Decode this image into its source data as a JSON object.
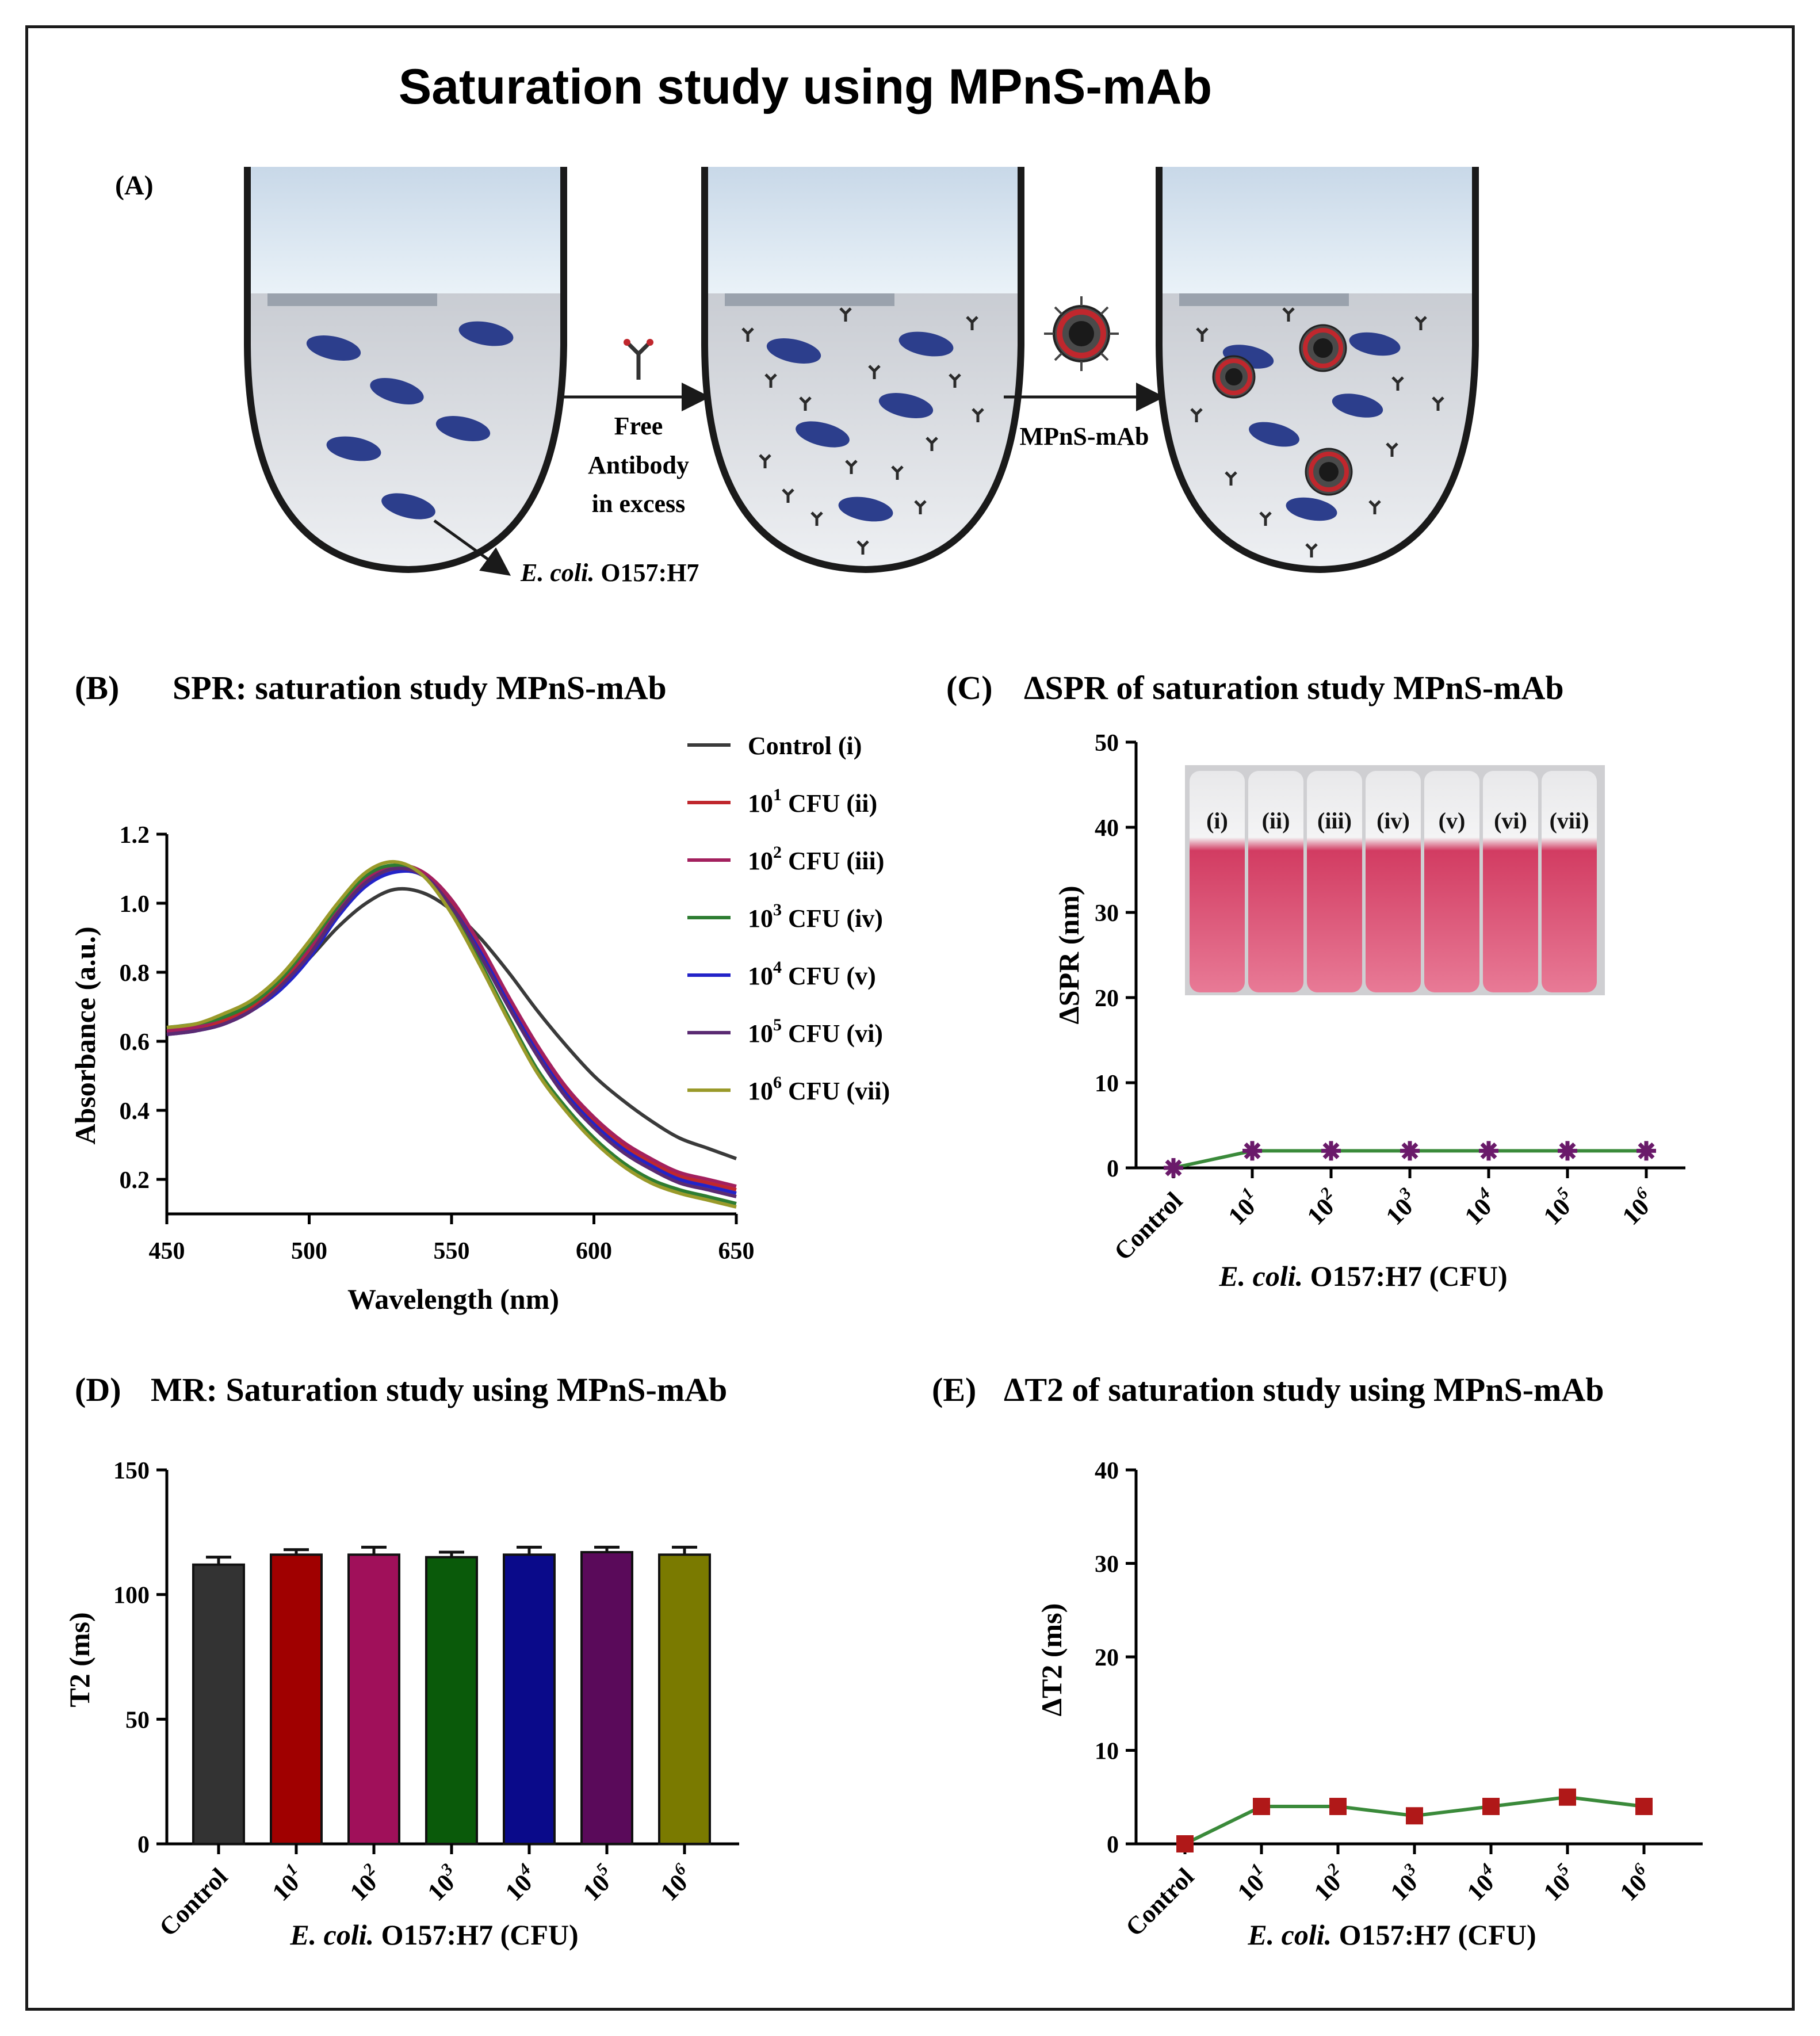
{
  "figure": {
    "title": "Saturation study using MPnS-mAb",
    "panel_a": {
      "label": "(A)",
      "step1_text": [
        "Free",
        "Antibody",
        "in excess"
      ],
      "step2_text": "MPnS-mAb",
      "pointer_label_italic": "E. coli.",
      "pointer_label_rest": " O157:H7"
    }
  },
  "chart_data": [
    {
      "id": "B",
      "panel_label": "(B)",
      "type": "line",
      "title": "SPR: saturation study MPnS-mAb",
      "xlabel": "Wavelength (nm)",
      "ylabel": "Absorbance (a.u.)",
      "xlim": [
        450,
        650
      ],
      "ylim": [
        0.1,
        1.2
      ],
      "xticks": [
        450,
        500,
        550,
        600,
        650
      ],
      "yticks": [
        0.2,
        0.4,
        0.6,
        0.8,
        1.0,
        1.2
      ],
      "ytick_labels": [
        "0.2",
        "0.4",
        "0.6",
        "0.8",
        "1.0",
        "1.2"
      ],
      "x": [
        450,
        460,
        470,
        480,
        490,
        500,
        510,
        520,
        530,
        540,
        550,
        560,
        570,
        580,
        590,
        600,
        610,
        620,
        630,
        640,
        650
      ],
      "series": [
        {
          "name": "Control (i)",
          "base": "Control",
          "sup": "",
          "suffix": " (i)",
          "color": "#3a3a3a",
          "values": [
            0.63,
            0.64,
            0.66,
            0.7,
            0.76,
            0.84,
            0.93,
            1.0,
            1.04,
            1.03,
            0.98,
            0.9,
            0.8,
            0.69,
            0.59,
            0.5,
            0.43,
            0.37,
            0.32,
            0.29,
            0.26
          ]
        },
        {
          "name": "10^1 CFU (ii)",
          "base": "10",
          "sup": "1",
          "suffix": " CFU (ii)",
          "color": "#c0272d",
          "values": [
            0.63,
            0.64,
            0.66,
            0.7,
            0.77,
            0.86,
            0.97,
            1.06,
            1.1,
            1.08,
            1.0,
            0.87,
            0.72,
            0.58,
            0.46,
            0.37,
            0.3,
            0.25,
            0.21,
            0.19,
            0.17
          ]
        },
        {
          "name": "10^2 CFU (iii)",
          "base": "10",
          "sup": "2",
          "suffix": " CFU (iii)",
          "color": "#a3205e",
          "values": [
            0.63,
            0.64,
            0.67,
            0.71,
            0.78,
            0.87,
            0.98,
            1.07,
            1.11,
            1.09,
            1.01,
            0.88,
            0.73,
            0.59,
            0.47,
            0.38,
            0.31,
            0.26,
            0.22,
            0.2,
            0.18
          ]
        },
        {
          "name": "10^3 CFU (iv)",
          "base": "10",
          "sup": "3",
          "suffix": " CFU (iv)",
          "color": "#2e7d32",
          "values": [
            0.64,
            0.65,
            0.67,
            0.71,
            0.78,
            0.88,
            0.99,
            1.08,
            1.11,
            1.08,
            0.98,
            0.83,
            0.67,
            0.52,
            0.41,
            0.32,
            0.25,
            0.2,
            0.17,
            0.15,
            0.13
          ]
        },
        {
          "name": "10^4 CFU (v)",
          "base": "10",
          "sup": "4",
          "suffix": " CFU (v)",
          "color": "#2323c8",
          "values": [
            0.62,
            0.63,
            0.65,
            0.69,
            0.75,
            0.84,
            0.96,
            1.05,
            1.09,
            1.08,
            0.99,
            0.86,
            0.71,
            0.57,
            0.45,
            0.36,
            0.29,
            0.24,
            0.2,
            0.18,
            0.16
          ]
        },
        {
          "name": "10^5 CFU (vi)",
          "base": "10",
          "sup": "5",
          "suffix": " CFU (vi)",
          "color": "#5a2a72",
          "values": [
            0.62,
            0.63,
            0.65,
            0.69,
            0.76,
            0.85,
            0.97,
            1.06,
            1.1,
            1.08,
            0.99,
            0.85,
            0.7,
            0.56,
            0.44,
            0.35,
            0.28,
            0.23,
            0.19,
            0.17,
            0.15
          ]
        },
        {
          "name": "10^6 CFU (vii)",
          "base": "10",
          "sup": "6",
          "suffix": " CFU (vii)",
          "color": "#9a9a2a",
          "values": [
            0.64,
            0.65,
            0.68,
            0.72,
            0.79,
            0.89,
            1.0,
            1.09,
            1.12,
            1.08,
            0.97,
            0.82,
            0.66,
            0.51,
            0.4,
            0.31,
            0.24,
            0.19,
            0.16,
            0.14,
            0.12
          ]
        }
      ]
    },
    {
      "id": "C",
      "panel_label": "(C)",
      "type": "line",
      "title": "ΔSPR of saturation study MPnS-mAb",
      "xlabel_italic": "E. coli.",
      "xlabel_rest": " O157:H7 (CFU)",
      "ylabel": "ΔSPR (nm)",
      "ylim": [
        0,
        50
      ],
      "yticks": [
        0,
        10,
        20,
        30,
        40,
        50
      ],
      "categories": [
        {
          "base": "Control",
          "sup": ""
        },
        {
          "base": "10",
          "sup": "1"
        },
        {
          "base": "10",
          "sup": "2"
        },
        {
          "base": "10",
          "sup": "3"
        },
        {
          "base": "10",
          "sup": "4"
        },
        {
          "base": "10",
          "sup": "5"
        },
        {
          "base": "10",
          "sup": "6"
        }
      ],
      "values": [
        0,
        2,
        2,
        2,
        2,
        2,
        2
      ],
      "line_color": "#3a8a3a",
      "marker_color": "#6a1a6a",
      "inset_tube_labels": [
        "(i)",
        "(ii)",
        "(iii)",
        "(iv)",
        "(v)",
        "(vi)",
        "(vii)"
      ]
    },
    {
      "id": "D",
      "panel_label": "(D)",
      "type": "bar",
      "title": "MR: Saturation study using MPnS-mAb",
      "xlabel_italic": "E. coli.",
      "xlabel_rest": " O157:H7 (CFU)",
      "ylabel": "T2 (ms)",
      "ylim": [
        0,
        150
      ],
      "yticks": [
        0,
        50,
        100,
        150
      ],
      "categories": [
        {
          "base": "Control",
          "sup": ""
        },
        {
          "base": "10",
          "sup": "1"
        },
        {
          "base": "10",
          "sup": "2"
        },
        {
          "base": "10",
          "sup": "3"
        },
        {
          "base": "10",
          "sup": "4"
        },
        {
          "base": "10",
          "sup": "5"
        },
        {
          "base": "10",
          "sup": "6"
        }
      ],
      "values": [
        112,
        116,
        116,
        115,
        116,
        117,
        116
      ],
      "errors": [
        3,
        2,
        3,
        2,
        3,
        2,
        3
      ],
      "colors": [
        "#333333",
        "#a00000",
        "#a0105a",
        "#0a5a0a",
        "#0a0a8a",
        "#5a0a5a",
        "#7a7a00"
      ]
    },
    {
      "id": "E",
      "panel_label": "(E)",
      "type": "line",
      "title": "ΔT2 of saturation study using MPnS-mAb",
      "xlabel_italic": "E. coli.",
      "xlabel_rest": " O157:H7 (CFU)",
      "ylabel": "ΔT2 (ms)",
      "ylim": [
        0,
        40
      ],
      "yticks": [
        0,
        10,
        20,
        30,
        40
      ],
      "categories": [
        {
          "base": "Control",
          "sup": ""
        },
        {
          "base": "10",
          "sup": "1"
        },
        {
          "base": "10",
          "sup": "2"
        },
        {
          "base": "10",
          "sup": "3"
        },
        {
          "base": "10",
          "sup": "4"
        },
        {
          "base": "10",
          "sup": "5"
        },
        {
          "base": "10",
          "sup": "6"
        }
      ],
      "values": [
        0,
        4,
        4,
        3,
        4,
        5,
        4
      ],
      "line_color": "#3a8a3a",
      "marker_color": "#b01818"
    }
  ]
}
